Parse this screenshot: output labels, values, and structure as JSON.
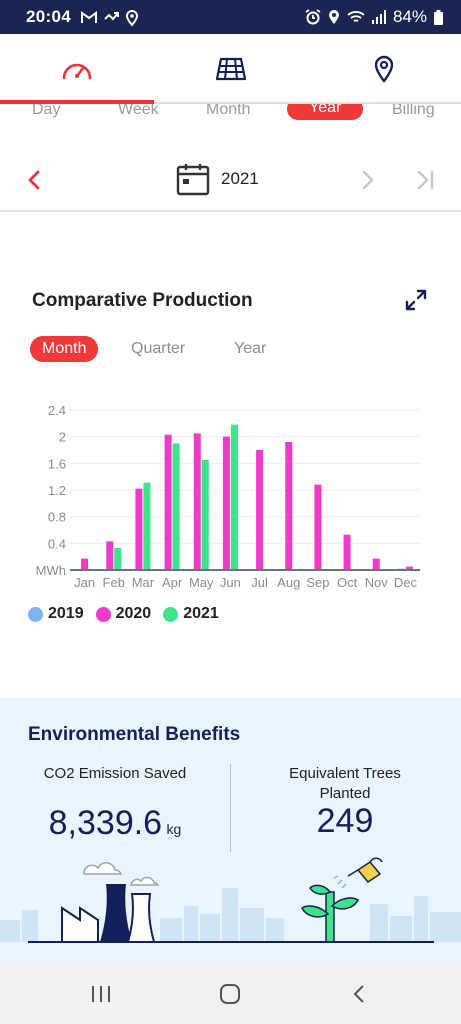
{
  "status_bar": {
    "time": "20:04",
    "battery": "84%",
    "left_icons": [
      "gmail-icon",
      "missed-call-icon",
      "location-pin-icon"
    ],
    "right_icons": [
      "alarm-icon",
      "location-icon",
      "wifi-icon",
      "signal-icon",
      "battery-icon"
    ]
  },
  "top_tabs": [
    {
      "icon": "gauge-icon",
      "active": true
    },
    {
      "icon": "solar-panel-icon",
      "active": false
    },
    {
      "icon": "location-pin-icon",
      "active": false
    }
  ],
  "period_tabs": {
    "items": [
      "Day",
      "Week",
      "Month",
      "Year",
      "Billing"
    ],
    "selected": "Year"
  },
  "date_selector": {
    "value": "2021"
  },
  "chart_section": {
    "title": "Comparative Production",
    "tabs": [
      "Month",
      "Quarter",
      "Year"
    ],
    "selected_tab": "Month"
  },
  "chart_data": {
    "type": "bar",
    "categories": [
      "Jan",
      "Feb",
      "Mar",
      "Apr",
      "May",
      "Jun",
      "Jul",
      "Aug",
      "Sep",
      "Oct",
      "Nov",
      "Dec"
    ],
    "ylabel": "MWh",
    "yticks": [
      "0.4",
      "0.8",
      "1.2",
      "1.6",
      "2",
      "2.4"
    ],
    "ylim": [
      0,
      2.4
    ],
    "legend_position": "bottom-left",
    "grid": true,
    "series": [
      {
        "name": "2019",
        "color": "#7fb3f0",
        "values": [
          0,
          0,
          0,
          0,
          0,
          0,
          0,
          0,
          0,
          0,
          0,
          0.02
        ]
      },
      {
        "name": "2020",
        "color": "#f03ac8",
        "values": [
          0.17,
          0.43,
          1.22,
          2.03,
          2.05,
          2.0,
          1.8,
          1.92,
          1.28,
          0.53,
          0.17,
          0.05
        ]
      },
      {
        "name": "2021",
        "color": "#3ee38a",
        "values": [
          0,
          0.33,
          1.31,
          1.9,
          1.65,
          2.18,
          0,
          0,
          0,
          0,
          0,
          0
        ]
      }
    ]
  },
  "env": {
    "title": "Environmental Benefits",
    "co2_label": "CO2 Emission Saved",
    "co2_value": "8,339.6",
    "co2_unit": "kg",
    "trees_label_1": "Equivalent Trees",
    "trees_label_2": "Planted",
    "trees_value": "249"
  },
  "colors": {
    "accent": "#e8343a",
    "navy": "#14205a",
    "status_bar_bg": "#1c2452"
  },
  "nav_bar": [
    "recent-apps-icon",
    "home-icon",
    "back-icon"
  ]
}
